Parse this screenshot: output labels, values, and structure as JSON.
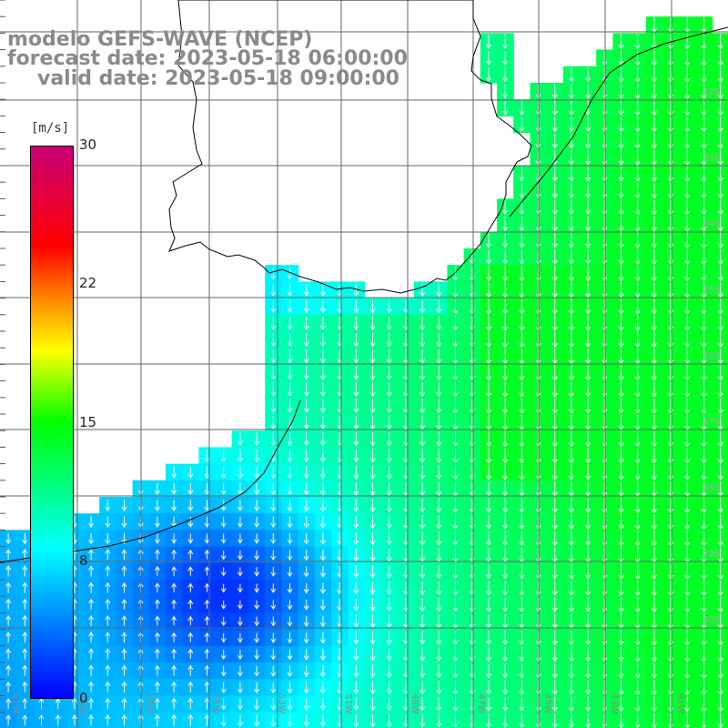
{
  "header": {
    "title_line1": "modelo GEFS-WAVE (NCEP)",
    "title_line2": "forecast date: 2023-05-18 06:00:00",
    "title_line3": "valid date: 2023-05-18 09:00:00"
  },
  "colorbar": {
    "unit": "[m/s]",
    "ticks": [
      "30",
      "22",
      "15",
      "8",
      "0"
    ],
    "range": [
      0,
      30
    ],
    "colors": [
      "#0000ff",
      "#00ffff",
      "#00ff00",
      "#ffff00",
      "#ff7f00",
      "#ff0000",
      "#c80078"
    ]
  },
  "axes": {
    "lon_labels": [
      "61W",
      "59W",
      "57W",
      "55W",
      "53W",
      "51W",
      "49W",
      "47W",
      "45W",
      "43W",
      "41W"
    ],
    "lat_labels": [
      "32S",
      "33S",
      "34S",
      "35S",
      "36S",
      "37S",
      "38S",
      "39S",
      "40S"
    ]
  },
  "colors": {
    "land": "#ffffff",
    "grid": "#666666",
    "coast": "#000000",
    "arrow": "#ffffff",
    "title": "#8a8a8a"
  }
}
